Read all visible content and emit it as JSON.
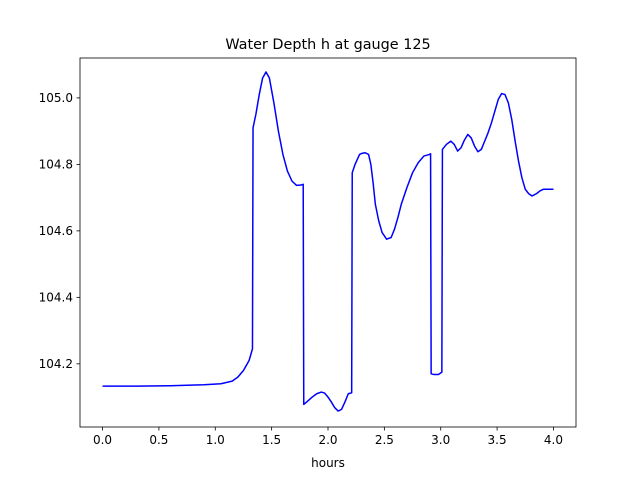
{
  "chart_data": {
    "type": "line",
    "title": "Water Depth h at gauge 125",
    "xlabel": "hours",
    "ylabel": "",
    "xlim": [
      -0.2,
      4.2
    ],
    "ylim": [
      104.01,
      105.12
    ],
    "xticks": [
      0.0,
      0.5,
      1.0,
      1.5,
      2.0,
      2.5,
      3.0,
      3.5,
      4.0
    ],
    "xtick_labels": [
      "0.0",
      "0.5",
      "1.0",
      "1.5",
      "2.0",
      "2.5",
      "3.0",
      "3.5",
      "4.0"
    ],
    "yticks": [
      104.2,
      104.4,
      104.6,
      104.8,
      105.0
    ],
    "ytick_labels": [
      "104.2",
      "104.4",
      "104.6",
      "104.8",
      "105.0"
    ],
    "grid": false,
    "series": [
      {
        "color": "#0000ff",
        "x": [
          0.0,
          0.3,
          0.6,
          0.9,
          1.05,
          1.15,
          1.2,
          1.25,
          1.3,
          1.33,
          1.335,
          1.36,
          1.39,
          1.42,
          1.45,
          1.48,
          1.52,
          1.56,
          1.6,
          1.64,
          1.68,
          1.72,
          1.76,
          1.78,
          1.785,
          1.82,
          1.86,
          1.9,
          1.94,
          1.97,
          2.0,
          2.03,
          2.06,
          2.09,
          2.12,
          2.15,
          2.18,
          2.21,
          2.215,
          2.24,
          2.28,
          2.3,
          2.33,
          2.36,
          2.38,
          2.4,
          2.42,
          2.45,
          2.48,
          2.52,
          2.56,
          2.59,
          2.62,
          2.65,
          2.7,
          2.75,
          2.8,
          2.85,
          2.9,
          2.91,
          2.915,
          2.94,
          2.98,
          3.01,
          3.015,
          3.05,
          3.09,
          3.12,
          3.15,
          3.18,
          3.21,
          3.24,
          3.27,
          3.3,
          3.33,
          3.36,
          3.39,
          3.42,
          3.45,
          3.48,
          3.51,
          3.54,
          3.57,
          3.6,
          3.63,
          3.66,
          3.69,
          3.72,
          3.75,
          3.78,
          3.81,
          3.85,
          3.88,
          3.91,
          3.94,
          3.97,
          4.0
        ],
        "y": [
          104.133,
          104.133,
          104.134,
          104.137,
          104.14,
          104.148,
          104.16,
          104.18,
          104.21,
          104.245,
          104.91,
          104.95,
          105.01,
          105.06,
          105.078,
          105.06,
          104.985,
          104.9,
          104.83,
          104.78,
          104.75,
          104.737,
          104.738,
          104.74,
          104.078,
          104.088,
          104.1,
          104.11,
          104.115,
          104.112,
          104.1,
          104.085,
          104.068,
          104.058,
          104.063,
          104.085,
          104.11,
          104.113,
          104.775,
          104.8,
          104.83,
          104.833,
          104.835,
          104.83,
          104.8,
          104.745,
          104.68,
          104.63,
          104.595,
          104.575,
          104.58,
          104.605,
          104.64,
          104.68,
          104.73,
          104.775,
          104.805,
          104.825,
          104.83,
          104.832,
          104.17,
          104.168,
          104.168,
          104.175,
          104.845,
          104.86,
          104.87,
          104.86,
          104.84,
          104.85,
          104.873,
          104.89,
          104.88,
          104.855,
          104.838,
          104.845,
          104.87,
          104.895,
          104.925,
          104.96,
          104.995,
          105.013,
          105.01,
          104.985,
          104.935,
          104.87,
          104.81,
          104.76,
          104.725,
          104.712,
          104.705,
          104.712,
          104.72,
          104.725,
          104.725,
          104.725,
          104.725
        ]
      }
    ]
  }
}
